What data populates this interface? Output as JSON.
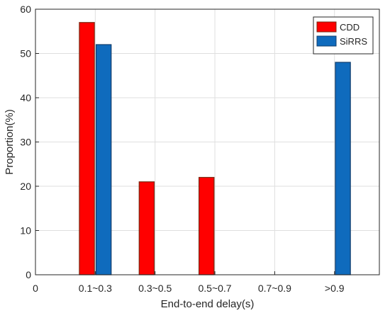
{
  "chart_data": {
    "type": "bar",
    "title": "",
    "xlabel": "End-to-end delay(s)",
    "ylabel": "Proportion(%)",
    "ylim": [
      0,
      60
    ],
    "yticks": [
      0,
      10,
      20,
      30,
      40,
      50,
      60
    ],
    "x_origin_label": "0",
    "categories": [
      "0.1~0.3",
      "0.3~0.5",
      "0.5~0.7",
      "0.7~0.9",
      ">0.9"
    ],
    "series": [
      {
        "name": "CDD",
        "color": "#ff0000",
        "edge_color": "#7a2a12",
        "values": [
          57,
          21,
          22,
          null,
          null
        ]
      },
      {
        "name": "SiRRS",
        "color": "#0f6bbd",
        "edge_color": "#123d6b",
        "values": [
          52,
          null,
          null,
          null,
          48
        ]
      }
    ],
    "grid": true,
    "legend_position": "top-right"
  }
}
